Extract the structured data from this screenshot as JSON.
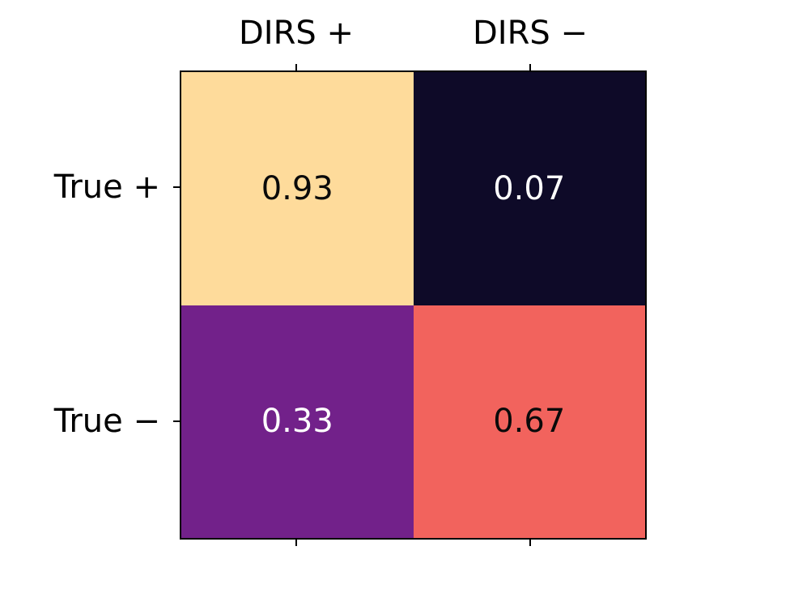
{
  "figure": {
    "background": "#ffffff",
    "border_color": "#000000"
  },
  "chart_data": {
    "type": "heatmap",
    "title": "",
    "x_categories": [
      "DIRS +",
      "DIRS −"
    ],
    "y_categories": [
      "True +",
      "True −"
    ],
    "values": [
      [
        0.93,
        0.07
      ],
      [
        0.33,
        0.67
      ]
    ],
    "value_labels": [
      [
        "0.93",
        "0.07"
      ],
      [
        "0.33",
        "0.67"
      ]
    ],
    "cell_colors": [
      [
        "#fedb9b",
        "#0e0a28"
      ],
      [
        "#72218a",
        "#f2635d"
      ]
    ],
    "cell_text_colors": [
      [
        "#0a0a0a",
        "#ffffff"
      ],
      [
        "#ffffff",
        "#0a0a0a"
      ]
    ],
    "layout": {
      "x_tick_positions": "top and bottom edges at column centers",
      "y_tick_positions": "left edge at row centers",
      "legend": "none",
      "grid": "off"
    }
  }
}
